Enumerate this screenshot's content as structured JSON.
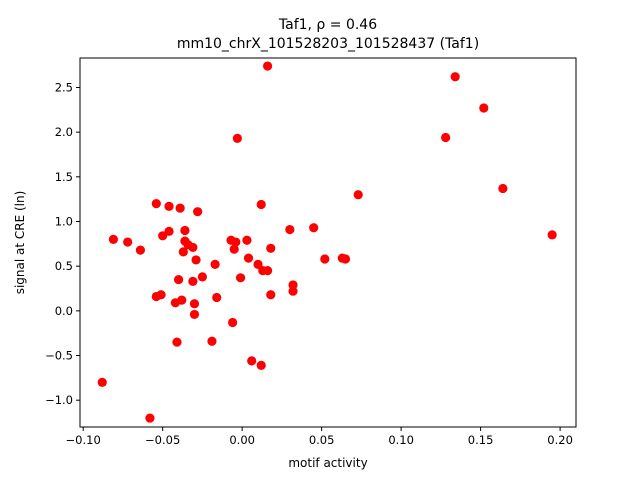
{
  "chart_data": {
    "type": "scatter",
    "title_line1": "Taf1, ρ = 0.46",
    "title_line2": "mm10_chrX_101528203_101528437 (Taf1)",
    "xlabel": "motif activity",
    "ylabel": "signal at CRE (ln)",
    "xlim": [
      -0.102,
      0.21
    ],
    "ylim": [
      -1.3,
      2.83
    ],
    "xticks": [
      -0.1,
      -0.05,
      0.0,
      0.05,
      0.1,
      0.15,
      0.2
    ],
    "xtick_labels": [
      "−0.10",
      "−0.05",
      "0.00",
      "0.05",
      "0.10",
      "0.15",
      "0.20"
    ],
    "yticks": [
      -1.0,
      -0.5,
      0.0,
      0.5,
      1.0,
      1.5,
      2.0,
      2.5
    ],
    "ytick_labels": [
      "−1.0",
      "−0.5",
      "0.0",
      "0.5",
      "1.0",
      "1.5",
      "2.0",
      "2.5"
    ],
    "grid": false,
    "marker_color": "#ff0000",
    "points": [
      {
        "x": -0.088,
        "y": -0.8
      },
      {
        "x": -0.081,
        "y": 0.8
      },
      {
        "x": -0.072,
        "y": 0.77
      },
      {
        "x": -0.064,
        "y": 0.68
      },
      {
        "x": -0.058,
        "y": -1.2
      },
      {
        "x": -0.054,
        "y": 1.2
      },
      {
        "x": -0.054,
        "y": 0.16
      },
      {
        "x": -0.051,
        "y": 0.18
      },
      {
        "x": -0.05,
        "y": 0.84
      },
      {
        "x": -0.046,
        "y": 0.89
      },
      {
        "x": -0.046,
        "y": 1.17
      },
      {
        "x": -0.042,
        "y": 0.09
      },
      {
        "x": -0.041,
        "y": -0.35
      },
      {
        "x": -0.04,
        "y": 0.35
      },
      {
        "x": -0.039,
        "y": 1.15
      },
      {
        "x": -0.038,
        "y": 0.12
      },
      {
        "x": -0.037,
        "y": 0.66
      },
      {
        "x": -0.036,
        "y": 0.9
      },
      {
        "x": -0.036,
        "y": 0.78
      },
      {
        "x": -0.034,
        "y": 0.74
      },
      {
        "x": -0.031,
        "y": 0.33
      },
      {
        "x": -0.031,
        "y": 0.71
      },
      {
        "x": -0.03,
        "y": 0.08
      },
      {
        "x": -0.03,
        "y": -0.04
      },
      {
        "x": -0.029,
        "y": 0.57
      },
      {
        "x": -0.028,
        "y": 1.11
      },
      {
        "x": -0.025,
        "y": 0.38
      },
      {
        "x": -0.019,
        "y": -0.34
      },
      {
        "x": -0.017,
        "y": 0.52
      },
      {
        "x": -0.016,
        "y": 0.15
      },
      {
        "x": -0.007,
        "y": 0.79
      },
      {
        "x": -0.006,
        "y": -0.13
      },
      {
        "x": -0.005,
        "y": 0.69
      },
      {
        "x": -0.004,
        "y": 0.77
      },
      {
        "x": -0.003,
        "y": 1.93
      },
      {
        "x": -0.001,
        "y": 0.37
      },
      {
        "x": 0.003,
        "y": 0.79
      },
      {
        "x": 0.004,
        "y": 0.59
      },
      {
        "x": 0.006,
        "y": -0.56
      },
      {
        "x": 0.01,
        "y": 0.52
      },
      {
        "x": 0.012,
        "y": -0.61
      },
      {
        "x": 0.012,
        "y": 1.19
      },
      {
        "x": 0.013,
        "y": 0.45
      },
      {
        "x": 0.016,
        "y": 0.45
      },
      {
        "x": 0.016,
        "y": 2.74
      },
      {
        "x": 0.018,
        "y": 0.7
      },
      {
        "x": 0.018,
        "y": 0.18
      },
      {
        "x": 0.03,
        "y": 0.91
      },
      {
        "x": 0.032,
        "y": 0.22
      },
      {
        "x": 0.032,
        "y": 0.29
      },
      {
        "x": 0.045,
        "y": 0.93
      },
      {
        "x": 0.052,
        "y": 0.58
      },
      {
        "x": 0.063,
        "y": 0.59
      },
      {
        "x": 0.065,
        "y": 0.58
      },
      {
        "x": 0.073,
        "y": 1.3
      },
      {
        "x": 0.128,
        "y": 1.94
      },
      {
        "x": 0.134,
        "y": 2.62
      },
      {
        "x": 0.152,
        "y": 2.27
      },
      {
        "x": 0.164,
        "y": 1.37
      },
      {
        "x": 0.195,
        "y": 0.85
      }
    ]
  }
}
